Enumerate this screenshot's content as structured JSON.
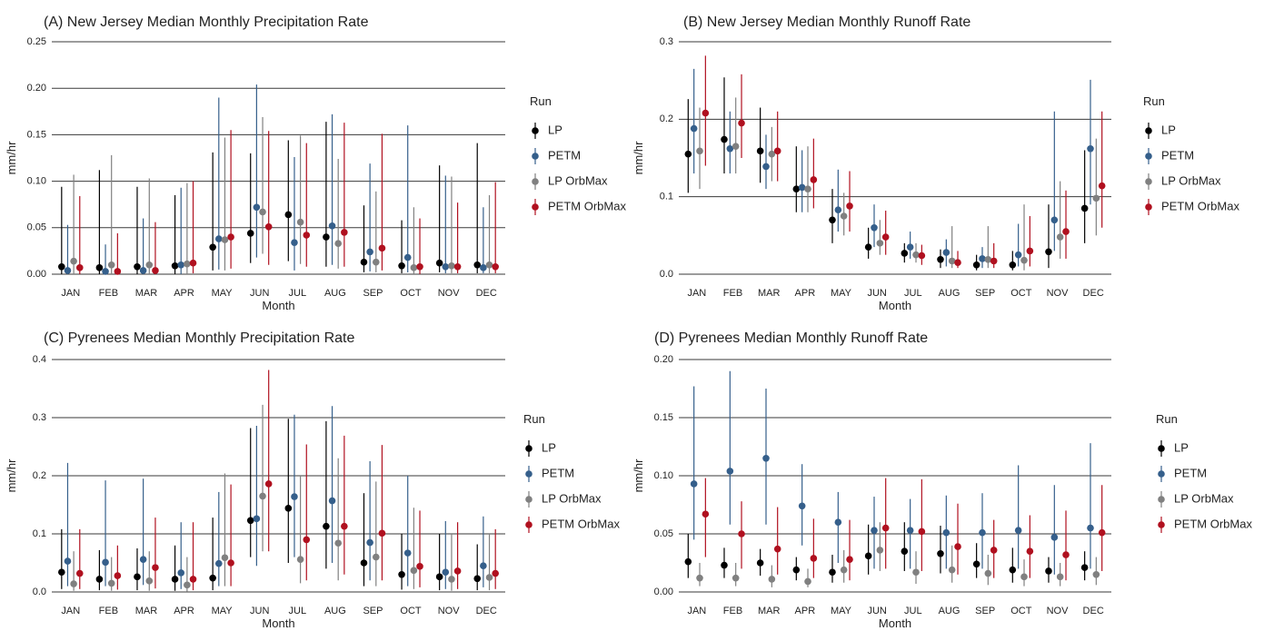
{
  "legend_title": "Run",
  "series": [
    {
      "name": "LP",
      "color": "#000000"
    },
    {
      "name": "PETM",
      "color": "#355f8b"
    },
    {
      "name": "LP OrbMax",
      "color": "#808080"
    },
    {
      "name": "PETM OrbMax",
      "color": "#b0101f"
    }
  ],
  "chart_data": [
    {
      "type": "scatter",
      "title": "(A) New Jersey Median Monthly Precipitation Rate",
      "xlabel": "Month",
      "ylabel": "mm/hr",
      "categories": [
        "JAN",
        "FEB",
        "MAR",
        "APR",
        "MAY",
        "JUN",
        "JUL",
        "AUG",
        "SEP",
        "OCT",
        "NOV",
        "DEC"
      ],
      "ylim": [
        0,
        0.25
      ],
      "yticks": [
        0,
        0.05,
        0.1,
        0.15,
        0.2,
        0.25
      ],
      "ytick_labels": [
        "0.00",
        "0.05",
        "0.10",
        "0.15",
        "0.20",
        "0.25"
      ],
      "grid": true,
      "legend": "right",
      "series": [
        {
          "name": "LP",
          "values": [
            0.008,
            0.007,
            0.008,
            0.009,
            0.029,
            0.044,
            0.064,
            0.04,
            0.013,
            0.009,
            0.012,
            0.01
          ],
          "low": [
            0,
            0,
            0,
            0,
            0.004,
            0.012,
            0.014,
            0.008,
            0.002,
            0.001,
            0.002,
            0.001
          ],
          "high": [
            0.094,
            0.112,
            0.094,
            0.085,
            0.131,
            0.13,
            0.144,
            0.164,
            0.074,
            0.058,
            0.117,
            0.141
          ]
        },
        {
          "name": "PETM",
          "values": [
            0.004,
            0.003,
            0.004,
            0.01,
            0.038,
            0.072,
            0.034,
            0.052,
            0.024,
            0.018,
            0.008,
            0.007
          ],
          "low": [
            0,
            0,
            0,
            0,
            0.005,
            0.018,
            0.004,
            0.01,
            0.003,
            0.002,
            0.001,
            0.001
          ],
          "high": [
            0.053,
            0.032,
            0.06,
            0.093,
            0.19,
            0.204,
            0.126,
            0.172,
            0.119,
            0.16,
            0.106,
            0.072
          ]
        },
        {
          "name": "LP OrbMax",
          "values": [
            0.014,
            0.01,
            0.01,
            0.011,
            0.037,
            0.067,
            0.056,
            0.033,
            0.013,
            0.007,
            0.009,
            0.01
          ],
          "low": [
            0,
            0,
            0,
            0,
            0.004,
            0.022,
            0.011,
            0.006,
            0.002,
            0,
            0.001,
            0.001
          ],
          "high": [
            0.107,
            0.128,
            0.103,
            0.098,
            0.147,
            0.169,
            0.149,
            0.124,
            0.089,
            0.072,
            0.105,
            0.085
          ]
        },
        {
          "name": "PETM OrbMax",
          "values": [
            0.007,
            0.003,
            0.004,
            0.012,
            0.04,
            0.051,
            0.042,
            0.045,
            0.028,
            0.008,
            0.008,
            0.008
          ],
          "low": [
            0,
            0,
            0,
            0.001,
            0.006,
            0.01,
            0.008,
            0.008,
            0.004,
            0,
            0.001,
            0.001
          ],
          "high": [
            0.084,
            0.044,
            0.056,
            0.1,
            0.155,
            0.154,
            0.141,
            0.163,
            0.151,
            0.06,
            0.077,
            0.099
          ]
        }
      ]
    },
    {
      "type": "scatter",
      "title": "(B) New Jersey Median Monthly Runoff Rate",
      "xlabel": "Month",
      "ylabel": "mm/hr",
      "categories": [
        "JAN",
        "FEB",
        "MAR",
        "APR",
        "MAY",
        "JUN",
        "JUL",
        "AUG",
        "SEP",
        "OCT",
        "NOV",
        "DEC"
      ],
      "ylim": [
        0,
        0.3
      ],
      "yticks": [
        0,
        0.1,
        0.2,
        0.3
      ],
      "ytick_labels": [
        "0.0",
        "0.1",
        "0.2",
        "0.3"
      ],
      "grid": true,
      "legend": "right",
      "series": [
        {
          "name": "LP",
          "values": [
            0.155,
            0.174,
            0.159,
            0.11,
            0.07,
            0.035,
            0.027,
            0.019,
            0.012,
            0.012,
            0.029,
            0.085
          ],
          "low": [
            0.105,
            0.13,
            0.118,
            0.08,
            0.04,
            0.02,
            0.015,
            0.008,
            0.005,
            0.005,
            0.008,
            0.04
          ],
          "high": [
            0.226,
            0.254,
            0.215,
            0.165,
            0.11,
            0.06,
            0.04,
            0.032,
            0.025,
            0.03,
            0.09,
            0.16
          ]
        },
        {
          "name": "PETM",
          "values": [
            0.188,
            0.162,
            0.139,
            0.112,
            0.083,
            0.06,
            0.035,
            0.028,
            0.02,
            0.025,
            0.07,
            0.162
          ],
          "low": [
            0.13,
            0.13,
            0.11,
            0.08,
            0.055,
            0.035,
            0.02,
            0.01,
            0.008,
            0.01,
            0.03,
            0.09
          ],
          "high": [
            0.265,
            0.21,
            0.18,
            0.16,
            0.135,
            0.09,
            0.055,
            0.045,
            0.035,
            0.065,
            0.21,
            0.251
          ]
        },
        {
          "name": "LP OrbMax",
          "values": [
            0.159,
            0.165,
            0.155,
            0.11,
            0.075,
            0.04,
            0.025,
            0.017,
            0.019,
            0.018,
            0.048,
            0.098
          ],
          "low": [
            0.11,
            0.13,
            0.12,
            0.08,
            0.05,
            0.025,
            0.015,
            0.008,
            0.008,
            0.005,
            0.02,
            0.05
          ],
          "high": [
            0.215,
            0.228,
            0.19,
            0.165,
            0.105,
            0.07,
            0.04,
            0.062,
            0.062,
            0.09,
            0.12,
            0.175
          ]
        },
        {
          "name": "PETM OrbMax",
          "values": [
            0.208,
            0.195,
            0.159,
            0.122,
            0.088,
            0.048,
            0.024,
            0.015,
            0.017,
            0.03,
            0.055,
            0.114
          ],
          "low": [
            0.14,
            0.15,
            0.12,
            0.085,
            0.055,
            0.025,
            0.012,
            0.008,
            0.008,
            0.01,
            0.02,
            0.06
          ],
          "high": [
            0.282,
            0.258,
            0.21,
            0.175,
            0.133,
            0.082,
            0.038,
            0.03,
            0.04,
            0.075,
            0.108,
            0.21
          ]
        }
      ]
    },
    {
      "type": "scatter",
      "title": "(C) Pyrenees Median Monthly Precipitation Rate",
      "xlabel": "Month",
      "ylabel": "mm/hr",
      "categories": [
        "JAN",
        "FEB",
        "MAR",
        "APR",
        "MAY",
        "JUN",
        "JUL",
        "AUG",
        "SEP",
        "OCT",
        "NOV",
        "DEC"
      ],
      "ylim": [
        0,
        0.4
      ],
      "yticks": [
        0,
        0.1,
        0.2,
        0.3,
        0.4
      ],
      "ytick_labels": [
        "0.0",
        "0.1",
        "0.2",
        "0.3",
        "0.4"
      ],
      "grid": true,
      "legend": "right",
      "series": [
        {
          "name": "LP",
          "values": [
            0.034,
            0.022,
            0.026,
            0.022,
            0.024,
            0.123,
            0.144,
            0.113,
            0.05,
            0.03,
            0.026,
            0.023
          ],
          "low": [
            0.005,
            0.003,
            0.003,
            0.002,
            0.003,
            0.06,
            0.05,
            0.04,
            0.01,
            0.004,
            0.003,
            0.003
          ],
          "high": [
            0.108,
            0.072,
            0.075,
            0.08,
            0.128,
            0.282,
            0.298,
            0.294,
            0.17,
            0.1,
            0.1,
            0.082
          ]
        },
        {
          "name": "PETM",
          "values": [
            0.053,
            0.051,
            0.056,
            0.033,
            0.049,
            0.126,
            0.164,
            0.157,
            0.085,
            0.067,
            0.034,
            0.045
          ],
          "low": [
            0.01,
            0.01,
            0.012,
            0.005,
            0.01,
            0.045,
            0.06,
            0.05,
            0.02,
            0.01,
            0.005,
            0.008
          ],
          "high": [
            0.222,
            0.192,
            0.195,
            0.12,
            0.172,
            0.286,
            0.305,
            0.32,
            0.225,
            0.2,
            0.122,
            0.13
          ]
        },
        {
          "name": "LP OrbMax",
          "values": [
            0.014,
            0.015,
            0.019,
            0.012,
            0.059,
            0.165,
            0.056,
            0.084,
            0.06,
            0.037,
            0.022,
            0.025
          ],
          "low": [
            0.002,
            0.002,
            0.002,
            0.001,
            0.01,
            0.07,
            0.015,
            0.02,
            0.01,
            0.005,
            0.002,
            0.003
          ],
          "high": [
            0.07,
            0.06,
            0.07,
            0.06,
            0.204,
            0.322,
            0.2,
            0.23,
            0.19,
            0.145,
            0.1,
            0.1
          ]
        },
        {
          "name": "PETM OrbMax",
          "values": [
            0.032,
            0.028,
            0.042,
            0.022,
            0.05,
            0.186,
            0.09,
            0.113,
            0.101,
            0.044,
            0.036,
            0.032
          ],
          "low": [
            0.005,
            0.004,
            0.006,
            0.003,
            0.01,
            0.07,
            0.02,
            0.03,
            0.02,
            0.008,
            0.005,
            0.005
          ],
          "high": [
            0.108,
            0.08,
            0.128,
            0.12,
            0.185,
            0.382,
            0.254,
            0.269,
            0.253,
            0.14,
            0.12,
            0.108
          ]
        }
      ]
    },
    {
      "type": "scatter",
      "title": "(D) Pyrenees Median Monthly Runoff Rate",
      "xlabel": "Month",
      "ylabel": "mm/hr",
      "categories": [
        "JAN",
        "FEB",
        "MAR",
        "APR",
        "MAY",
        "JUN",
        "JUL",
        "AUG",
        "SEP",
        "OCT",
        "NOV",
        "DEC"
      ],
      "ylim": [
        0,
        0.2
      ],
      "yticks": [
        0,
        0.05,
        0.1,
        0.15,
        0.2
      ],
      "ytick_labels": [
        "0.00",
        "0.05",
        "0.10",
        "0.15",
        "0.20"
      ],
      "grid": true,
      "legend": "right",
      "series": [
        {
          "name": "LP",
          "values": [
            0.026,
            0.023,
            0.025,
            0.019,
            0.017,
            0.031,
            0.035,
            0.033,
            0.024,
            0.019,
            0.018,
            0.021
          ],
          "low": [
            0.012,
            0.012,
            0.014,
            0.01,
            0.008,
            0.015,
            0.018,
            0.016,
            0.012,
            0.008,
            0.008,
            0.01
          ],
          "high": [
            0.05,
            0.038,
            0.037,
            0.03,
            0.032,
            0.058,
            0.06,
            0.057,
            0.042,
            0.038,
            0.03,
            0.035
          ]
        },
        {
          "name": "PETM",
          "values": [
            0.093,
            0.104,
            0.115,
            0.074,
            0.06,
            0.053,
            0.053,
            0.051,
            0.051,
            0.053,
            0.047,
            0.055
          ],
          "low": [
            0.045,
            0.058,
            0.058,
            0.04,
            0.025,
            0.02,
            0.02,
            0.02,
            0.02,
            0.02,
            0.015,
            0.02
          ],
          "high": [
            0.177,
            0.19,
            0.175,
            0.11,
            0.086,
            0.082,
            0.08,
            0.083,
            0.085,
            0.109,
            0.092,
            0.128
          ]
        },
        {
          "name": "LP OrbMax",
          "values": [
            0.012,
            0.012,
            0.011,
            0.009,
            0.019,
            0.036,
            0.017,
            0.019,
            0.016,
            0.013,
            0.013,
            0.015
          ],
          "low": [
            0.005,
            0.005,
            0.004,
            0.004,
            0.008,
            0.018,
            0.007,
            0.008,
            0.006,
            0.005,
            0.005,
            0.006
          ],
          "high": [
            0.025,
            0.025,
            0.023,
            0.02,
            0.036,
            0.06,
            0.035,
            0.04,
            0.032,
            0.028,
            0.025,
            0.03
          ]
        },
        {
          "name": "PETM OrbMax",
          "values": [
            0.067,
            0.05,
            0.037,
            0.029,
            0.028,
            0.055,
            0.052,
            0.039,
            0.036,
            0.035,
            0.032,
            0.051
          ],
          "low": [
            0.03,
            0.02,
            0.015,
            0.012,
            0.01,
            0.02,
            0.018,
            0.015,
            0.012,
            0.012,
            0.01,
            0.018
          ],
          "high": [
            0.098,
            0.078,
            0.073,
            0.063,
            0.062,
            0.098,
            0.097,
            0.076,
            0.062,
            0.066,
            0.07,
            0.092
          ]
        }
      ]
    }
  ]
}
